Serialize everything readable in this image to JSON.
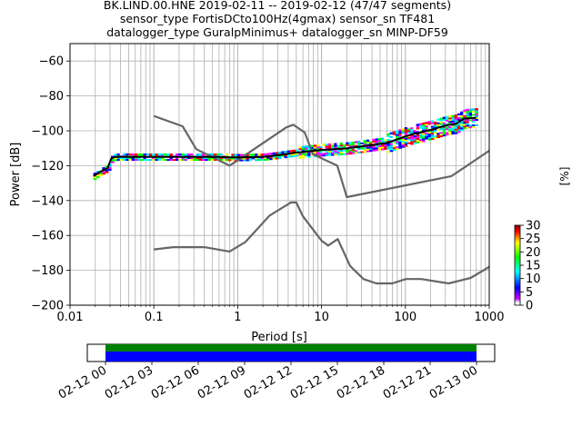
{
  "chart_data": [
    {
      "type": "line",
      "title_lines": [
        "BK.LIND.00.HNE   2019-02-11 -- 2019-02-12  (47/47 segments)",
        "sensor_type FortisDCto100Hz(4gmax) sensor_sn TF481",
        "datalogger_type GuralpMinimus+ datalogger_sn MINP-DF59"
      ],
      "xlabel": "Period [s]",
      "ylabel": "Power [dB]",
      "xscale": "log",
      "xlim": [
        0.01,
        1000
      ],
      "ylim": [
        -200,
        -50
      ],
      "xticks": [
        {
          "v": 0.01,
          "label": "0.01"
        },
        {
          "v": 0.1,
          "label": "0.1"
        },
        {
          "v": 1,
          "label": "1"
        },
        {
          "v": 10,
          "label": "10"
        },
        {
          "v": 100,
          "label": "100"
        },
        {
          "v": 1000,
          "label": "1000"
        }
      ],
      "yticks": [
        -200,
        -180,
        -160,
        -140,
        -120,
        -100,
        -80,
        -60
      ],
      "grid": true,
      "colorbar": {
        "label": "[%]",
        "min": 0,
        "max": 30,
        "ticks": [
          0,
          5,
          10,
          15,
          20,
          25,
          30
        ]
      },
      "series": [
        {
          "role": "noise-model-upper",
          "color": "#666666",
          "points": [
            [
              0.1,
              -91.5
            ],
            [
              0.22,
              -97.4
            ],
            [
              0.32,
              -110.5
            ],
            [
              0.8,
              -120
            ],
            [
              3.8,
              -98
            ],
            [
              4.6,
              -96.5
            ],
            [
              6.3,
              -101
            ],
            [
              7.9,
              -113.5
            ],
            [
              15.4,
              -120
            ],
            [
              20,
              -138
            ],
            [
              354.8,
              -126
            ],
            [
              1000,
              -111.4
            ]
          ]
        },
        {
          "role": "noise-model-lower",
          "color": "#666666",
          "points": [
            [
              0.1,
              -168
            ],
            [
              0.17,
              -166.7
            ],
            [
              0.4,
              -166.7
            ],
            [
              0.8,
              -169.2
            ],
            [
              1.24,
              -163.7
            ],
            [
              2.4,
              -148.6
            ],
            [
              4.3,
              -141.1
            ],
            [
              5,
              -141.1
            ],
            [
              6,
              -149
            ],
            [
              10,
              -163
            ],
            [
              12,
              -165.8
            ],
            [
              15.6,
              -162.1
            ],
            [
              21.9,
              -177.5
            ],
            [
              31.6,
              -185
            ],
            [
              45,
              -187.5
            ],
            [
              70,
              -187.5
            ],
            [
              101,
              -185
            ],
            [
              154,
              -185
            ],
            [
              328,
              -187.5
            ],
            [
              600,
              -184.4
            ],
            [
              1000,
              -178
            ]
          ]
        },
        {
          "role": "mode",
          "color": "#000000",
          "points": [
            [
              0.019,
              -126
            ],
            [
              0.022,
              -124
            ],
            [
              0.025,
              -122.5
            ],
            [
              0.028,
              -121.5
            ],
            [
              0.031,
              -116
            ],
            [
              0.034,
              -115
            ],
            [
              0.05,
              -115
            ],
            [
              0.1,
              -115
            ],
            [
              0.3,
              -115
            ],
            [
              0.6,
              -115
            ],
            [
              1,
              -115.3
            ],
            [
              2,
              -115
            ],
            [
              3,
              -114
            ],
            [
              5,
              -112.5
            ],
            [
              10,
              -111
            ],
            [
              20,
              -110
            ],
            [
              35,
              -108.5
            ],
            [
              60,
              -107
            ],
            [
              90,
              -104
            ],
            [
              120,
              -102
            ],
            [
              150,
              -101
            ],
            [
              200,
              -99.5
            ],
            [
              300,
              -97
            ],
            [
              400,
              -96
            ],
            [
              500,
              -93
            ],
            [
              700,
              -92.5
            ]
          ]
        }
      ]
    },
    {
      "type": "bar",
      "role": "data-availability",
      "xticks": [
        "02-12 00",
        "02-12 03",
        "02-12 06",
        "02-12 09",
        "02-12 12",
        "02-12 15",
        "02-12 18",
        "02-12 21",
        "02-13 00"
      ],
      "series": [
        {
          "color": "#008000",
          "start": "02-12 00",
          "end": "02-13 00"
        },
        {
          "color": "#0000ff",
          "start": "02-12 00",
          "end": "02-13 00"
        }
      ]
    }
  ]
}
